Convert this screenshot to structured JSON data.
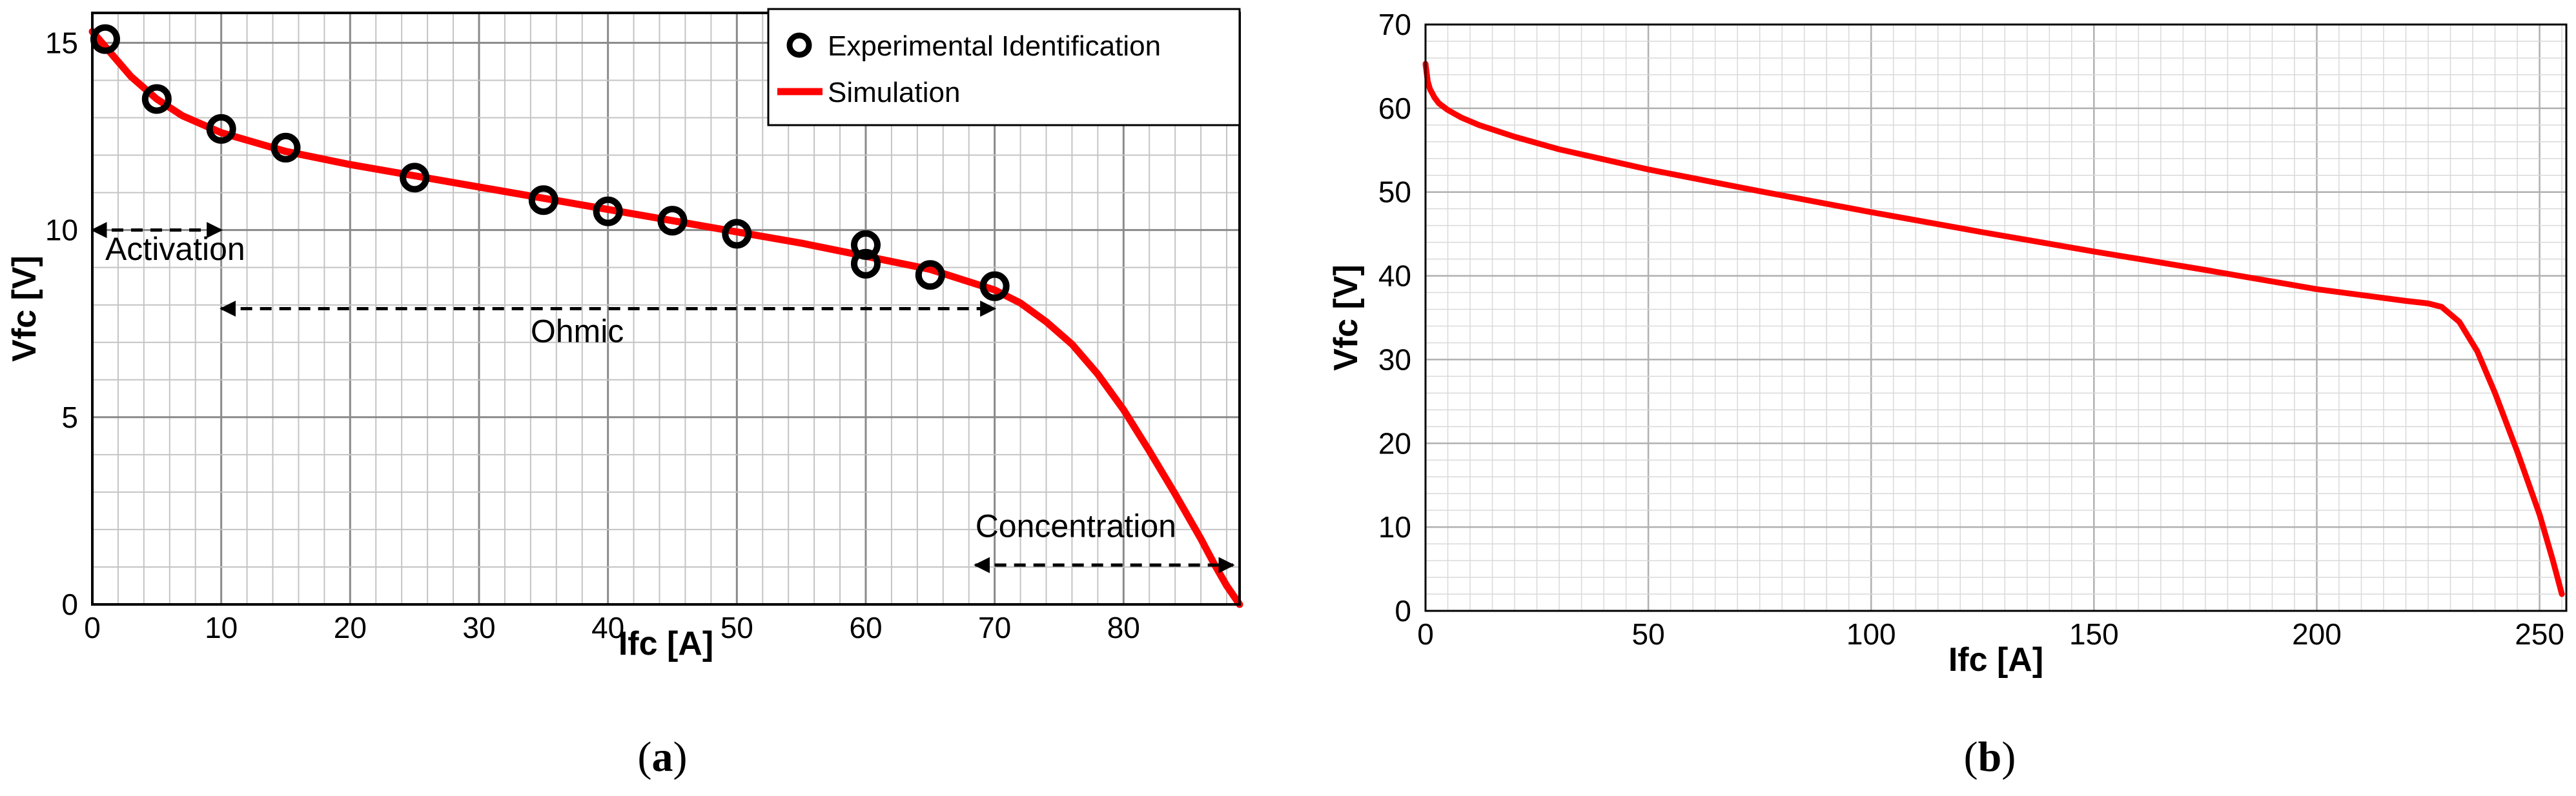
{
  "chart_data": [
    {
      "type": "line",
      "panel_caption": {
        "open": "(",
        "letter": "a",
        "close": ")"
      },
      "xlabel": "Ifc [A]",
      "ylabel": "Vfc [V]",
      "xlim": [
        0,
        89
      ],
      "ylim": [
        0,
        15.8
      ],
      "xticks": [
        0,
        10,
        20,
        30,
        40,
        50,
        60,
        70,
        80
      ],
      "yticks": [
        0,
        5,
        10,
        15
      ],
      "x_minor_step": 2,
      "y_minor_step": 1,
      "grid": true,
      "legend_position": "top-right",
      "series": [
        {
          "name": "Experimental Identification",
          "style": "marker-circle",
          "color": "#000000",
          "x": [
            1,
            5,
            10,
            15,
            25,
            35,
            40,
            45,
            50,
            60,
            60,
            65,
            70
          ],
          "y": [
            15.1,
            13.5,
            12.7,
            12.2,
            11.4,
            10.8,
            10.5,
            10.25,
            9.9,
            9.6,
            9.1,
            8.8,
            8.5
          ]
        },
        {
          "name": "Simulation",
          "style": "line",
          "color": "#ff0000",
          "x": [
            0,
            1,
            2,
            3,
            5,
            7,
            10,
            15,
            20,
            25,
            30,
            35,
            40,
            45,
            50,
            55,
            60,
            65,
            70,
            72,
            74,
            76,
            78,
            80,
            82,
            84,
            86,
            87,
            88,
            89
          ],
          "y": [
            15.3,
            14.9,
            14.5,
            14.1,
            13.5,
            13.05,
            12.6,
            12.1,
            11.75,
            11.45,
            11.15,
            10.85,
            10.55,
            10.25,
            9.95,
            9.65,
            9.3,
            8.95,
            8.4,
            8.05,
            7.55,
            6.95,
            6.15,
            5.2,
            4.1,
            2.95,
            1.75,
            1.1,
            0.5,
            0.0
          ]
        }
      ],
      "annotations": [
        {
          "text": "Activation",
          "x_from": 0,
          "x_to": 10,
          "y_arrow": 10.0,
          "label_x": 1,
          "label_y": 9.2
        },
        {
          "text": "Ohmic",
          "x_from": 10,
          "x_to": 70,
          "y_arrow": 7.9,
          "label_x": 34,
          "label_y": 7.0
        },
        {
          "text": "Concentration",
          "x_from": 68.5,
          "x_to": 88.5,
          "y_arrow": 1.05,
          "label_x": 68.5,
          "label_y": 1.8
        }
      ]
    },
    {
      "type": "line",
      "panel_caption": {
        "open": "(",
        "letter": "b",
        "close": ")"
      },
      "xlabel": "Ifc [A]",
      "ylabel": "Vfc [V]",
      "xlim": [
        0,
        256
      ],
      "ylim": [
        0,
        70
      ],
      "xticks": [
        0,
        50,
        100,
        150,
        200,
        250
      ],
      "yticks": [
        0,
        10,
        20,
        30,
        40,
        50,
        60,
        70
      ],
      "x_minor_step": 5,
      "y_minor_step": 2,
      "grid": true,
      "series": [
        {
          "name": "Vfc",
          "style": "line",
          "color": "#ff0000",
          "x": [
            0,
            0.5,
            1,
            2,
            3,
            5,
            8,
            12,
            20,
            30,
            50,
            75,
            100,
            125,
            150,
            175,
            200,
            220,
            225,
            228,
            232,
            236,
            240,
            245,
            250,
            253,
            255
          ],
          "y": [
            65.3,
            63.2,
            62.3,
            61.3,
            60.6,
            59.8,
            58.9,
            58.0,
            56.6,
            55.1,
            52.7,
            50.1,
            47.6,
            45.2,
            42.9,
            40.7,
            38.4,
            37.0,
            36.7,
            36.3,
            34.5,
            31.0,
            26.0,
            19.0,
            11.5,
            6.0,
            2.0
          ]
        }
      ]
    }
  ]
}
